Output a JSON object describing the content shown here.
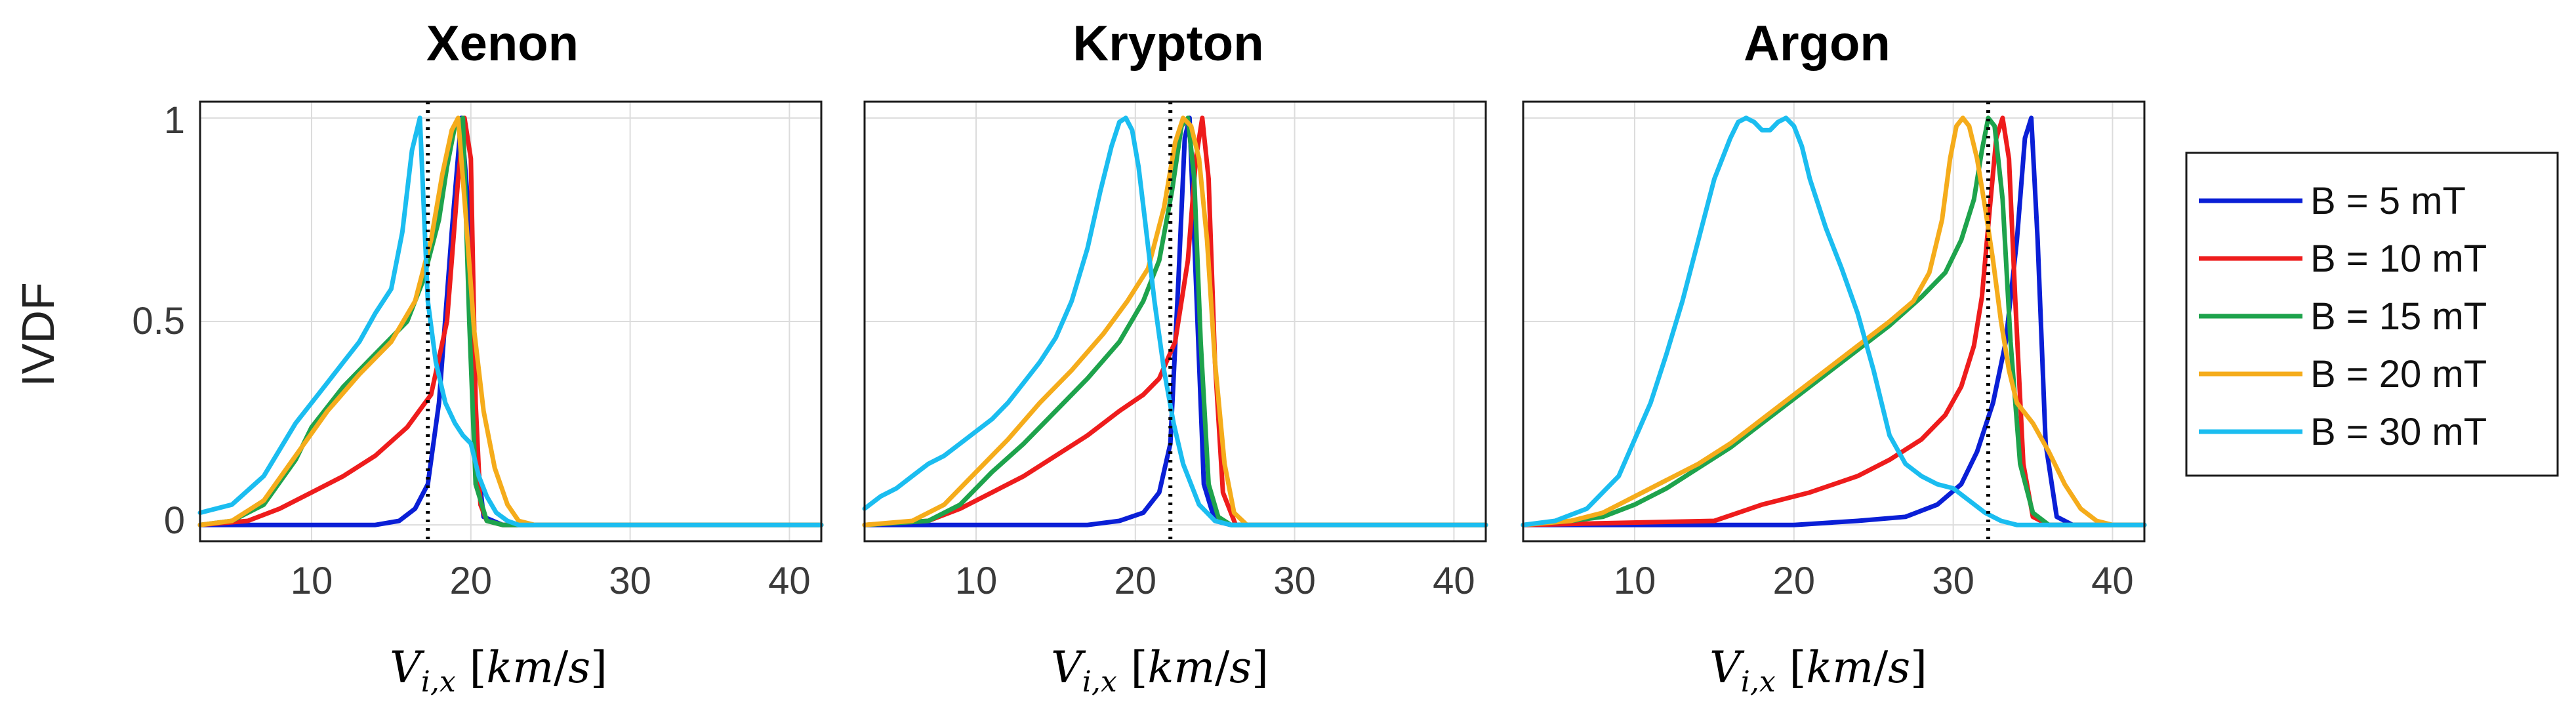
{
  "chart_data": {
    "type": "line",
    "ylabel": "IVDF",
    "xlabel": "V_{i,x} [km/s]",
    "xlim": [
      3,
      42
    ],
    "ylim": [
      -0.04,
      1.04
    ],
    "xticks": [
      10,
      20,
      30,
      40
    ],
    "yticks": [
      0,
      0.5,
      1
    ],
    "ytick_labels": [
      "0",
      "0.5",
      "1"
    ],
    "legend": {
      "placement": "right",
      "entries": [
        {
          "label": "B = 5 mT",
          "color": "#0a1fd6"
        },
        {
          "label": "B = 10 mT",
          "color": "#ee1c1c"
        },
        {
          "label": "B = 15 mT",
          "color": "#1ea34c"
        },
        {
          "label": "B = 20 mT",
          "color": "#f5ac1b"
        },
        {
          "label": "B = 30 mT",
          "color": "#1bbdf0"
        }
      ]
    },
    "panels": [
      {
        "title": "Xenon",
        "vline_x": 17.3,
        "series": [
          {
            "name": "B = 5 mT",
            "color": "#0a1fd6",
            "x": [
              3,
              14,
              15.5,
              16.5,
              17.3,
              18,
              18.8,
              19.4,
              19.9,
              20.3,
              20.8,
              22,
              42
            ],
            "y": [
              0,
              0,
              0.01,
              0.04,
              0.1,
              0.3,
              0.72,
              1.0,
              0.75,
              0.2,
              0.02,
              0,
              0
            ]
          },
          {
            "name": "B = 10 mT",
            "color": "#ee1c1c",
            "x": [
              3,
              6,
              8,
              10,
              12,
              14,
              16,
              17.5,
              18.5,
              19.2,
              19.6,
              20,
              20.3,
              20.6,
              21,
              22,
              42
            ],
            "y": [
              0,
              0.01,
              0.04,
              0.08,
              0.12,
              0.17,
              0.24,
              0.32,
              0.5,
              0.85,
              1.0,
              0.9,
              0.3,
              0.05,
              0.01,
              0,
              0
            ]
          },
          {
            "name": "B = 15 mT",
            "color": "#1ea34c",
            "x": [
              3,
              5,
              7,
              9,
              10,
              12,
              14,
              16,
              17,
              18,
              18.5,
              19,
              19.5,
              19.9,
              20.3,
              21,
              22,
              42
            ],
            "y": [
              0,
              0.01,
              0.05,
              0.16,
              0.24,
              0.34,
              0.42,
              0.5,
              0.6,
              0.75,
              0.88,
              0.98,
              1.0,
              0.5,
              0.1,
              0.01,
              0,
              0
            ]
          },
          {
            "name": "B = 20 mT",
            "color": "#f5ac1b",
            "x": [
              3,
              5,
              7,
              9,
              11,
              13,
              15,
              16.5,
              17.5,
              18.2,
              18.8,
              19.2,
              19.7,
              20.2,
              20.8,
              21.5,
              22.3,
              23,
              24,
              42
            ],
            "y": [
              0,
              0.01,
              0.06,
              0.17,
              0.28,
              0.37,
              0.45,
              0.55,
              0.7,
              0.86,
              0.97,
              1.0,
              0.75,
              0.48,
              0.28,
              0.14,
              0.05,
              0.01,
              0,
              0
            ]
          },
          {
            "name": "B = 30 mT",
            "color": "#1bbdf0",
            "x": [
              3,
              5,
              7,
              9,
              10,
              11,
              12,
              13,
              14,
              15,
              15.7,
              16.3,
              16.8,
              17.3,
              17.8,
              18.4,
              19,
              19.5,
              20,
              20.5,
              21,
              21.6,
              22.3,
              23,
              42
            ],
            "y": [
              0.03,
              0.05,
              0.12,
              0.25,
              0.3,
              0.35,
              0.4,
              0.45,
              0.52,
              0.58,
              0.72,
              0.92,
              1.0,
              0.55,
              0.4,
              0.3,
              0.25,
              0.22,
              0.2,
              0.12,
              0.07,
              0.03,
              0.01,
              0,
              0
            ]
          }
        ]
      },
      {
        "title": "Krypton",
        "vline_x": 22.2,
        "series": [
          {
            "name": "B = 5 mT",
            "color": "#0a1fd6",
            "x": [
              3,
              17,
              19,
              20.5,
              21.5,
              22.2,
              22.7,
              23.1,
              23.4,
              23.8,
              24.3,
              25,
              26,
              42
            ],
            "y": [
              0,
              0,
              0.01,
              0.03,
              0.08,
              0.2,
              0.6,
              0.95,
              1.0,
              0.6,
              0.1,
              0.01,
              0,
              0
            ]
          },
          {
            "name": "B = 10 mT",
            "color": "#ee1c1c",
            "x": [
              3,
              7,
              9,
              11,
              13,
              15,
              17,
              19,
              20.5,
              21.5,
              22.5,
              23.3,
              23.8,
              24.2,
              24.6,
              25,
              25.5,
              26.3,
              42
            ],
            "y": [
              0,
              0.01,
              0.04,
              0.08,
              0.12,
              0.17,
              0.22,
              0.28,
              0.32,
              0.36,
              0.45,
              0.65,
              0.9,
              1.0,
              0.85,
              0.4,
              0.08,
              0,
              0
            ]
          },
          {
            "name": "B = 15 mT",
            "color": "#1ea34c",
            "x": [
              3,
              7,
              9,
              11,
              13,
              15,
              17,
              19,
              20.5,
              21.5,
              22.3,
              22.9,
              23.3,
              23.7,
              24.1,
              24.6,
              25.2,
              26,
              42
            ],
            "y": [
              0,
              0.01,
              0.05,
              0.13,
              0.2,
              0.28,
              0.36,
              0.45,
              0.55,
              0.65,
              0.82,
              0.98,
              1.0,
              0.85,
              0.45,
              0.1,
              0.02,
              0,
              0
            ]
          },
          {
            "name": "B = 20 mT",
            "color": "#f5ac1b",
            "x": [
              3,
              6,
              8,
              10,
              12,
              14,
              16,
              18,
              19.5,
              20.8,
              21.8,
              22.5,
              23,
              23.5,
              24,
              24.5,
              25,
              25.6,
              26.2,
              27,
              42
            ],
            "y": [
              0,
              0.01,
              0.05,
              0.13,
              0.21,
              0.3,
              0.38,
              0.47,
              0.55,
              0.63,
              0.78,
              0.94,
              1.0,
              0.98,
              0.9,
              0.7,
              0.4,
              0.15,
              0.03,
              0,
              0
            ]
          },
          {
            "name": "B = 30 mT",
            "color": "#1bbdf0",
            "x": [
              3,
              4,
              5,
              6,
              7,
              8,
              9,
              10,
              11,
              12,
              13,
              14,
              15,
              16,
              17,
              17.8,
              18.5,
              19,
              19.4,
              19.8,
              20.2,
              20.6,
              21.2,
              21.8,
              22.4,
              23,
              24,
              25,
              26,
              42
            ],
            "y": [
              0.04,
              0.07,
              0.09,
              0.12,
              0.15,
              0.17,
              0.2,
              0.23,
              0.26,
              0.3,
              0.35,
              0.4,
              0.46,
              0.55,
              0.68,
              0.82,
              0.93,
              0.99,
              1.0,
              0.97,
              0.88,
              0.75,
              0.55,
              0.38,
              0.25,
              0.15,
              0.05,
              0.01,
              0,
              0
            ]
          }
        ]
      },
      {
        "title": "Argon",
        "vline_x": 32.2,
        "series": [
          {
            "name": "B = 5 mT",
            "color": "#0a1fd6",
            "x": [
              3,
              20,
              24,
              27,
              29,
              30.5,
              31.5,
              32.5,
              33.3,
              34,
              34.5,
              34.9,
              35.3,
              35.8,
              36.5,
              37.5,
              42
            ],
            "y": [
              0,
              0,
              0.01,
              0.02,
              0.05,
              0.1,
              0.18,
              0.3,
              0.45,
              0.7,
              0.95,
              1.0,
              0.7,
              0.2,
              0.02,
              0,
              0
            ]
          },
          {
            "name": "B = 10 mT",
            "color": "#ee1c1c",
            "x": [
              3,
              15,
              18,
              21,
              24,
              26,
              28,
              29.5,
              30.5,
              31.3,
              31.8,
              32.3,
              32.7,
              33.1,
              33.5,
              33.9,
              34.4,
              35,
              36,
              42
            ],
            "y": [
              0,
              0.01,
              0.05,
              0.08,
              0.12,
              0.16,
              0.21,
              0.27,
              0.34,
              0.44,
              0.56,
              0.78,
              0.95,
              1.0,
              0.9,
              0.55,
              0.15,
              0.02,
              0,
              0
            ]
          },
          {
            "name": "B = 15 mT",
            "color": "#1ea34c",
            "x": [
              3,
              6,
              8,
              10,
              12,
              14,
              16,
              18,
              20,
              22,
              24,
              26,
              28,
              29.5,
              30.5,
              31.3,
              31.8,
              32.2,
              32.6,
              33.1,
              33.6,
              34.2,
              35,
              36,
              42
            ],
            "y": [
              0,
              0.01,
              0.02,
              0.05,
              0.09,
              0.14,
              0.19,
              0.25,
              0.31,
              0.37,
              0.43,
              0.49,
              0.56,
              0.62,
              0.7,
              0.8,
              0.92,
              1.0,
              0.98,
              0.8,
              0.45,
              0.15,
              0.03,
              0,
              0
            ]
          },
          {
            "name": "B = 20 mT",
            "color": "#f5ac1b",
            "x": [
              3,
              6,
              8,
              10,
              12,
              14,
              16,
              18,
              20,
              22,
              24,
              26,
              27.5,
              28.5,
              29.3,
              29.8,
              30.2,
              30.6,
              31,
              31.5,
              32,
              32.5,
              33,
              33.5,
              34,
              35,
              36,
              37,
              38,
              39,
              40,
              41,
              42
            ],
            "y": [
              0,
              0.01,
              0.03,
              0.07,
              0.11,
              0.15,
              0.2,
              0.26,
              0.32,
              0.38,
              0.44,
              0.5,
              0.55,
              0.62,
              0.75,
              0.9,
              0.98,
              1.0,
              0.98,
              0.9,
              0.78,
              0.65,
              0.5,
              0.38,
              0.3,
              0.25,
              0.18,
              0.1,
              0.04,
              0.01,
              0,
              0,
              0
            ]
          },
          {
            "name": "B = 30 mT",
            "color": "#1bbdf0",
            "x": [
              3,
              5,
              7,
              9,
              11,
              12,
              13,
              14,
              15,
              16,
              16.5,
              17,
              17.5,
              18,
              18.5,
              19,
              19.5,
              20,
              20.5,
              21,
              22,
              23,
              24,
              25,
              26,
              27,
              28,
              29,
              30,
              31,
              32,
              33,
              34,
              36,
              42
            ],
            "y": [
              0,
              0.01,
              0.04,
              0.12,
              0.3,
              0.42,
              0.55,
              0.7,
              0.85,
              0.95,
              0.99,
              1.0,
              0.99,
              0.97,
              0.97,
              0.99,
              1.0,
              0.98,
              0.93,
              0.85,
              0.73,
              0.63,
              0.52,
              0.38,
              0.22,
              0.15,
              0.12,
              0.1,
              0.09,
              0.06,
              0.03,
              0.01,
              0,
              0,
              0
            ]
          }
        ]
      }
    ]
  }
}
